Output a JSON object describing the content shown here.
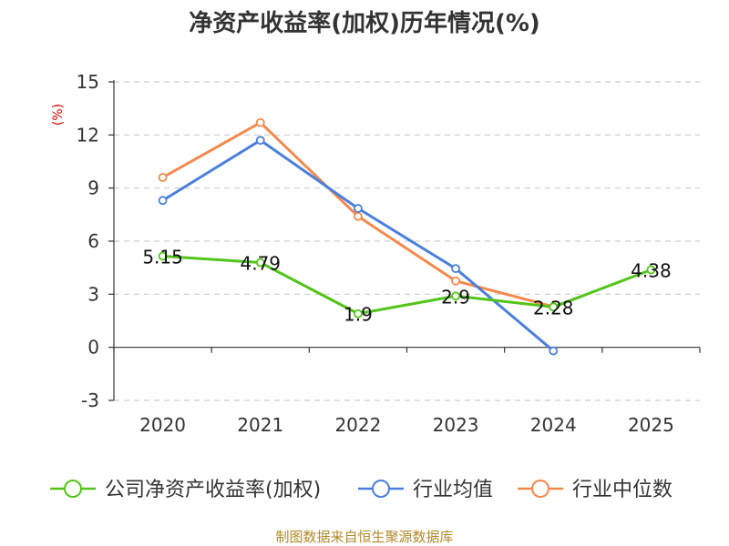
{
  "chart_data": {
    "type": "line",
    "title": "净资产收益率(加权)历年情况(%)",
    "ylabel": "(%)",
    "xlabel": "",
    "ylim": [
      -3,
      15
    ],
    "yticks": [
      -3,
      0,
      3,
      6,
      9,
      12,
      15
    ],
    "categories": [
      "2020",
      "2021",
      "2022",
      "2023",
      "2024",
      "2025"
    ],
    "grid": true,
    "legend_position": "bottom",
    "series": [
      {
        "name": "公司净资产收益率(加权)",
        "color": "#52c41a",
        "values": [
          5.15,
          4.79,
          1.9,
          2.9,
          2.28,
          4.38
        ],
        "labels": [
          "5.15",
          "4.79",
          "1.9",
          "2.9",
          "2.28",
          "4.38"
        ]
      },
      {
        "name": "行业均值",
        "color": "#4a7fdc",
        "values": [
          8.3,
          11.7,
          7.85,
          4.45,
          -0.2,
          null
        ]
      },
      {
        "name": "行业中位数",
        "color": "#f5894d",
        "values": [
          9.6,
          12.7,
          7.4,
          3.75,
          2.3,
          null
        ]
      }
    ],
    "source": "制图数据来自恒生聚源数据库"
  }
}
